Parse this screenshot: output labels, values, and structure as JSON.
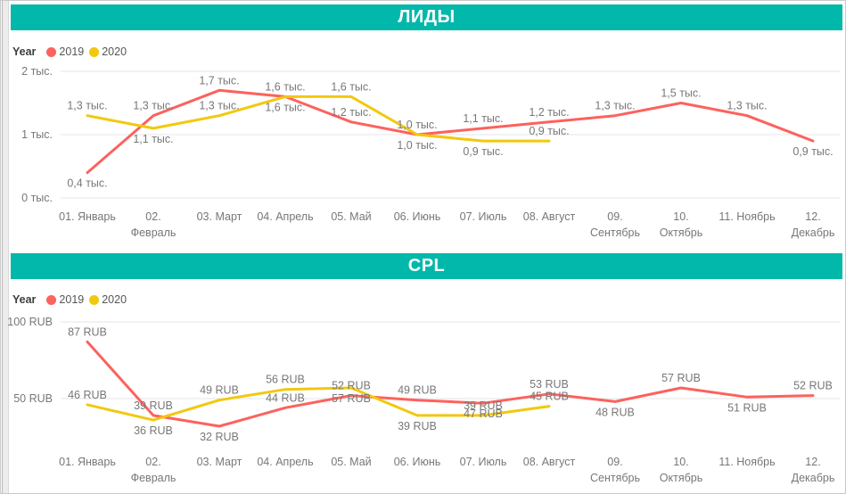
{
  "colors": {
    "accent_teal": "#01B8AA",
    "series_2019": "#FC625E",
    "series_2020": "#F2C80F",
    "label_text": "#777777",
    "gridline": "#e6e6e6"
  },
  "legend": {
    "title": "Year",
    "items": [
      {
        "label": "2019",
        "color": "#FC625E"
      },
      {
        "label": "2020",
        "color": "#F2C80F"
      }
    ]
  },
  "chart_data": [
    {
      "type": "line",
      "title": "ЛИДЫ",
      "unit": "тыс.",
      "legend_position": "top-left",
      "grid": true,
      "categories": [
        "01. Январь",
        "02. Февраль",
        "03. Март",
        "04. Апрель",
        "05. Май",
        "06. Июнь",
        "07. Июль",
        "08. Август",
        "09. Сентябрь",
        "10. Октябрь",
        "11. Ноябрь",
        "12. Декабрь"
      ],
      "x_labels": [
        [
          "01. Январь"
        ],
        [
          "02.",
          "Февраль"
        ],
        [
          "03. Март"
        ],
        [
          "04. Апрель"
        ],
        [
          "05. Май"
        ],
        [
          "06. Июнь"
        ],
        [
          "07. Июль"
        ],
        [
          "08. Август"
        ],
        [
          "09.",
          "Сентябрь"
        ],
        [
          "10.",
          "Октябрь"
        ],
        [
          "11. Ноябрь"
        ],
        [
          "12.",
          "Декабрь"
        ]
      ],
      "ylim": [
        0,
        2.2
      ],
      "y_ticks": [
        {
          "value": 0,
          "label": "0 тыс."
        },
        {
          "value": 1,
          "label": "1 тыс."
        },
        {
          "value": 2,
          "label": "2 тыс."
        }
      ],
      "series": [
        {
          "name": "2019",
          "color": "#FC625E",
          "values": [
            0.4,
            1.3,
            1.7,
            1.6,
            1.2,
            1.0,
            1.1,
            1.2,
            1.3,
            1.5,
            1.3,
            0.9
          ],
          "labels": [
            "0,4 тыс.",
            "1,3 тыс.",
            "1,7 тыс.",
            "1,6 тыс.",
            "1,2 тыс.",
            "1,0 тыс.",
            "1,1 тыс.",
            "1,2 тыс.",
            "1,3 тыс.",
            "1,5 тыс.",
            "1,3 тыс.",
            "0,9 тыс."
          ],
          "label_pos": [
            "below",
            "above",
            "above",
            "below",
            "above",
            "below",
            "above",
            "above",
            "above",
            "above",
            "above",
            "below"
          ]
        },
        {
          "name": "2020",
          "color": "#F2C80F",
          "values": [
            1.3,
            1.1,
            1.3,
            1.6,
            1.6,
            1.0,
            0.9,
            0.9
          ],
          "labels": [
            "1,3 тыс.",
            "1,1 тыс.",
            "1,3 тыс.",
            "1,6 тыс.",
            "1,6 тыс.",
            "1,0 тыс.",
            "0,9 тыс.",
            "0,9 тыс."
          ],
          "label_pos": [
            "above",
            "below",
            "above",
            "above",
            "above",
            "above",
            "below",
            "above"
          ]
        }
      ]
    },
    {
      "type": "line",
      "title": "CPL",
      "unit": "RUB",
      "legend_position": "top-left",
      "grid": true,
      "categories": [
        "01. Январь",
        "02. Февраль",
        "03. Март",
        "04. Апрель",
        "05. Май",
        "06. Июнь",
        "07. Июль",
        "08. Август",
        "09. Сентябрь",
        "10. Октябрь",
        "11. Ноябрь",
        "12. Декабрь"
      ],
      "x_labels": [
        [
          "01. Январь"
        ],
        [
          "02.",
          "Февраль"
        ],
        [
          "03. Март"
        ],
        [
          "04. Апрель"
        ],
        [
          "05. Май"
        ],
        [
          "06. Июнь"
        ],
        [
          "07. Июль"
        ],
        [
          "08. Август"
        ],
        [
          "09.",
          "Сентябрь"
        ],
        [
          "10.",
          "Октябрь"
        ],
        [
          "11. Ноябрь"
        ],
        [
          "12.",
          "Декабрь"
        ]
      ],
      "ylim": [
        25,
        103
      ],
      "y_ticks": [
        {
          "value": 50,
          "label": "50 RUB"
        },
        {
          "value": 100,
          "label": "100 RUB"
        }
      ],
      "series": [
        {
          "name": "2019",
          "color": "#FC625E",
          "values": [
            87,
            39,
            32,
            44,
            52,
            49,
            47,
            53,
            48,
            57,
            51,
            52
          ],
          "labels": [
            "87 RUB",
            "39 RUB",
            "32 RUB",
            "44 RUB",
            "52 RUB",
            "49 RUB",
            "47 RUB",
            "53 RUB",
            "48 RUB",
            "57 RUB",
            "51 RUB",
            "52 RUB"
          ],
          "label_pos": [
            "above",
            "above",
            "below",
            "above",
            "above",
            "above",
            "below",
            "above",
            "below",
            "above",
            "below",
            "above"
          ]
        },
        {
          "name": "2020",
          "color": "#F2C80F",
          "values": [
            46,
            36,
            49,
            56,
            57,
            39,
            39,
            45
          ],
          "labels": [
            "46 RUB",
            "36 RUB",
            "49 RUB",
            "56 RUB",
            "57 RUB",
            "39 RUB",
            "39 RUB",
            "45 RUB"
          ],
          "label_pos": [
            "above",
            "below",
            "above",
            "above",
            "below",
            "below",
            "above",
            "above"
          ]
        }
      ]
    }
  ]
}
